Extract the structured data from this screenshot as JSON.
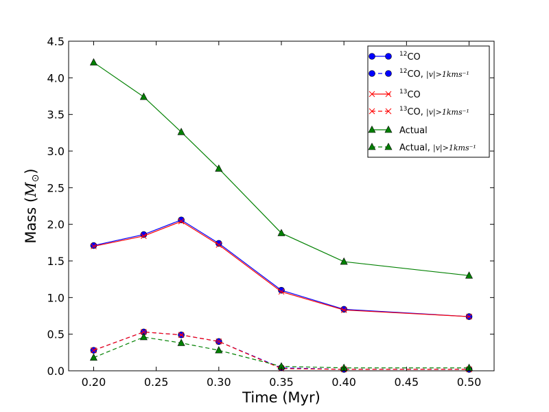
{
  "chart_data": {
    "type": "line",
    "title": "",
    "xlabel": "Time (Myr)",
    "ylabel_text": "Mass (",
    "ylabel_math": "M",
    "ylabel_sub": "⊙",
    "ylabel_close": ")",
    "xlim": [
      0.18,
      0.52
    ],
    "ylim": [
      0.0,
      4.5
    ],
    "grid": false,
    "legend_position": "upper-right",
    "x": [
      0.2,
      0.24,
      0.27,
      0.3,
      0.35,
      0.4,
      0.5
    ],
    "xticks": [
      "0.20",
      "0.25",
      "0.30",
      "0.35",
      "0.40",
      "0.45",
      "0.50"
    ],
    "xtick_values": [
      0.2,
      0.25,
      0.3,
      0.35,
      0.4,
      0.45,
      0.5
    ],
    "yticks": [
      "0.0",
      "0.5",
      "1.0",
      "1.5",
      "2.0",
      "2.5",
      "3.0",
      "3.5",
      "4.0",
      "4.5"
    ],
    "ytick_values": [
      0.0,
      0.5,
      1.0,
      1.5,
      2.0,
      2.5,
      3.0,
      3.5,
      4.0,
      4.5
    ],
    "series": [
      {
        "name": "12CO",
        "color": "#0000ff",
        "marker": "circle",
        "dashed": false,
        "values": [
          1.71,
          1.86,
          2.06,
          1.74,
          1.1,
          0.84,
          0.74
        ]
      },
      {
        "name": "12CO, |v| > 1 km s-1",
        "color": "#0000ff",
        "marker": "circle",
        "dashed": true,
        "values": [
          0.28,
          0.53,
          0.49,
          0.4,
          0.04,
          0.02,
          0.02
        ]
      },
      {
        "name": "13CO",
        "color": "#ff0000",
        "marker": "x",
        "dashed": false,
        "values": [
          1.7,
          1.84,
          2.04,
          1.72,
          1.08,
          0.83,
          0.74
        ]
      },
      {
        "name": "13CO, |v| > 1 km s-1",
        "color": "#ff0000",
        "marker": "x",
        "dashed": true,
        "values": [
          0.28,
          0.53,
          0.49,
          0.4,
          0.03,
          0.02,
          0.02
        ]
      },
      {
        "name": "Actual",
        "color": "#008000",
        "marker": "triangle",
        "dashed": false,
        "values": [
          4.21,
          3.74,
          3.26,
          2.76,
          1.88,
          1.49,
          1.3
        ]
      },
      {
        "name": "Actual, |v| > 1 km s-1",
        "color": "#008000",
        "marker": "triangle",
        "dashed": true,
        "values": [
          0.18,
          0.46,
          0.38,
          0.28,
          0.06,
          0.04,
          0.04
        ]
      }
    ],
    "legend": [
      {
        "sup": "12",
        "text": "CO",
        "math": ""
      },
      {
        "sup": "12",
        "text": "CO, ",
        "math": "|v|>1kms⁻¹"
      },
      {
        "sup": "13",
        "text": "CO",
        "math": ""
      },
      {
        "sup": "13",
        "text": "CO, ",
        "math": "|v|>1kms⁻¹"
      },
      {
        "sup": "",
        "text": "Actual",
        "math": ""
      },
      {
        "sup": "",
        "text": "Actual, ",
        "math": "|v|>1kms⁻¹"
      }
    ]
  }
}
